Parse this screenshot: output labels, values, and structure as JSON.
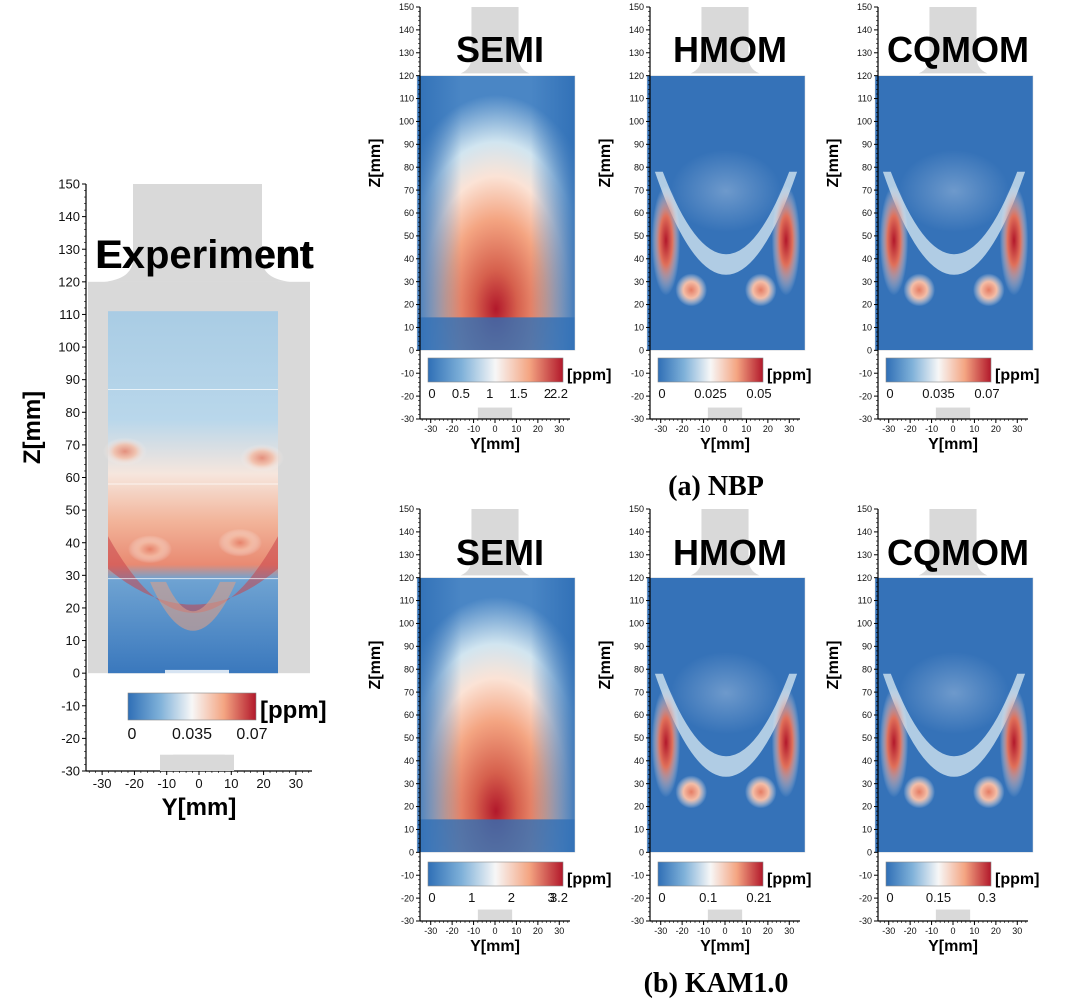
{
  "experiment": {
    "title": "Experiment",
    "z_axis_label": "Z[mm]",
    "y_axis_label": "Y[mm]",
    "z_ticks": [
      "150",
      "140",
      "130",
      "120",
      "110",
      "100",
      "90",
      "80",
      "70",
      "60",
      "50",
      "40",
      "30",
      "20",
      "10",
      "0",
      "-10",
      "-20",
      "-30"
    ],
    "y_ticks": [
      "-30",
      "-20",
      "-10",
      "0",
      "10",
      "20",
      "30"
    ],
    "colorbar": {
      "unit": "[ppm]",
      "ticks": [
        "0",
        "0.035",
        "0.07"
      ]
    }
  },
  "rows": [
    {
      "caption": "(a) NBP",
      "panels": [
        {
          "title": "SEMI",
          "z_axis_label": "Z[mm]",
          "y_axis_label": "Y[mm]",
          "colorbar": {
            "unit": "[ppm]",
            "ticks": [
              "0",
              "0.5",
              "1",
              "1.5",
              "2",
              "2.2"
            ]
          }
        },
        {
          "title": "HMOM",
          "z_axis_label": "Z[mm]",
          "y_axis_label": "Y[mm]",
          "colorbar": {
            "unit": "[ppm]",
            "ticks": [
              "0",
              "0.025",
              "0.05"
            ]
          }
        },
        {
          "title": "CQMOM",
          "z_axis_label": "Z[mm]",
          "y_axis_label": "Y[mm]",
          "colorbar": {
            "unit": "[ppm]",
            "ticks": [
              "0",
              "0.035",
              "0.07"
            ]
          }
        }
      ]
    },
    {
      "caption": "(b) KAM1.0",
      "panels": [
        {
          "title": "SEMI",
          "z_axis_label": "Z[mm]",
          "y_axis_label": "Y[mm]",
          "colorbar": {
            "unit": "[ppm]",
            "ticks": [
              "0",
              "1",
              "2",
              "3",
              "3.2"
            ]
          }
        },
        {
          "title": "HMOM",
          "z_axis_label": "Z[mm]",
          "y_axis_label": "Y[mm]",
          "colorbar": {
            "unit": "[ppm]",
            "ticks": [
              "0",
              "0.1",
              "0.21"
            ]
          }
        },
        {
          "title": "CQMOM",
          "z_axis_label": "Z[mm]",
          "y_axis_label": "Y[mm]",
          "colorbar": {
            "unit": "[ppm]",
            "ticks": [
              "0",
              "0.15",
              "0.3"
            ]
          }
        }
      ]
    }
  ],
  "colors": {
    "low": "#2f6fb6",
    "mid": "#f7f7f7",
    "high": "#b2182b",
    "geometry": "#d9d9d9"
  }
}
